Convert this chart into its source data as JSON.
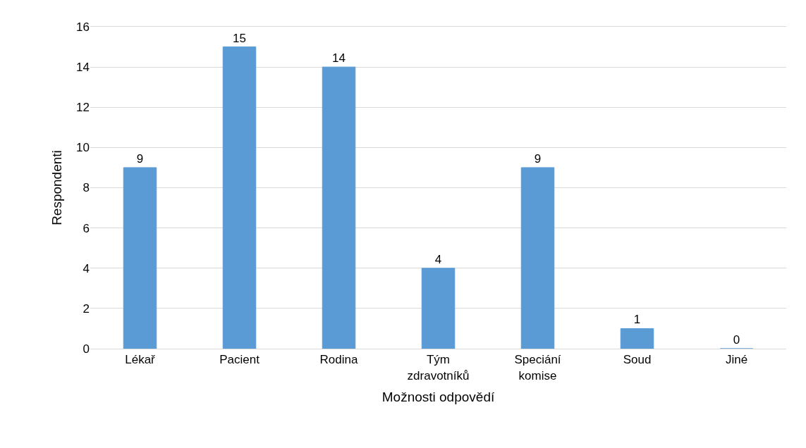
{
  "chart_data": {
    "type": "bar",
    "xlabel": "Možnosti odpovědí",
    "ylabel": "Respondenti",
    "categories": [
      "Lékař",
      "Pacient",
      "Rodina",
      "Tým zdravotníků",
      "Speciání komise",
      "Soud",
      "Jiné"
    ],
    "values": [
      9,
      15,
      14,
      4,
      9,
      1,
      0
    ],
    "color": "#5b9bd5",
    "ylim": [
      0,
      16
    ],
    "yticks": [
      0,
      2,
      4,
      6,
      8,
      10,
      12,
      14,
      16
    ],
    "grid": "y",
    "data_labels": true
  }
}
